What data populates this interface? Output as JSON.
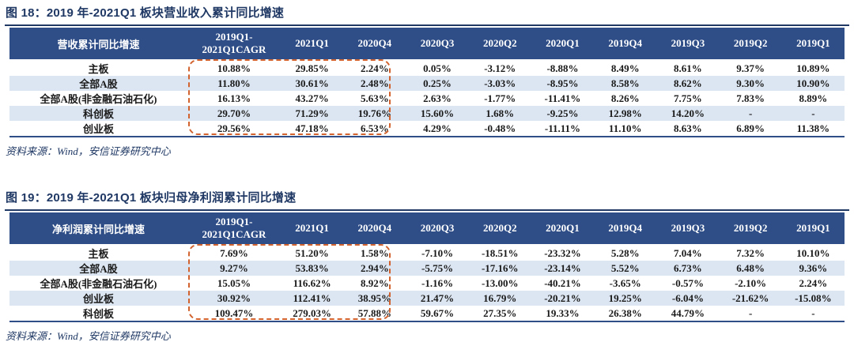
{
  "colors": {
    "header_bg": "#2F4E87",
    "row_alt_bg": "#DCE6F2",
    "navy_text": "#1F3864",
    "highlight_dashed_border": "#D2632F",
    "table_bottom_border": "#2F4E87"
  },
  "figures": [
    {
      "title": "图 18：2019 年-2021Q1 板块营业收入累计同比增速",
      "source": "资料来源：Wind，安信证券研究中心",
      "table": {
        "header_label": "营收累计同比增速",
        "cagr_header_line1": "2019Q1-",
        "cagr_header_line2": "2021Q1CAGR",
        "quarter_columns": [
          "2021Q1",
          "2020Q4",
          "2020Q3",
          "2020Q2",
          "2020Q1",
          "2019Q4",
          "2019Q3",
          "2019Q2",
          "2019Q1"
        ],
        "highlighted_columns": [
          "2019Q1-2021Q1CAGR",
          "2021Q1",
          "2020Q4"
        ],
        "rows": [
          {
            "label": "主板",
            "values": [
              "10.88%",
              "29.85%",
              "2.24%",
              "0.05%",
              "-3.12%",
              "-8.88%",
              "8.49%",
              "8.61%",
              "9.37%",
              "10.89%"
            ]
          },
          {
            "label": "全部A股",
            "values": [
              "11.80%",
              "30.61%",
              "2.48%",
              "0.25%",
              "-3.03%",
              "-8.95%",
              "8.58%",
              "8.62%",
              "9.30%",
              "10.90%"
            ]
          },
          {
            "label": "全部A股(非金融石油石化)",
            "values": [
              "16.13%",
              "43.27%",
              "5.63%",
              "2.63%",
              "-1.77%",
              "-11.41%",
              "8.26%",
              "7.75%",
              "7.83%",
              "8.89%"
            ]
          },
          {
            "label": "科创板",
            "values": [
              "29.70%",
              "71.29%",
              "19.76%",
              "15.60%",
              "1.68%",
              "-9.25%",
              "12.98%",
              "14.20%",
              "-",
              "-"
            ]
          },
          {
            "label": "创业板",
            "values": [
              "29.56%",
              "47.18%",
              "6.53%",
              "4.29%",
              "-0.48%",
              "-11.11%",
              "11.10%",
              "8.63%",
              "6.89%",
              "11.38%"
            ]
          }
        ]
      }
    },
    {
      "title": "图 19：2019 年-2021Q1 板块归母净利润累计同比增速",
      "source": "资料来源：Wind，安信证券研究中心",
      "table": {
        "header_label": "净利润累计同比增速",
        "cagr_header_line1": "2019Q1-",
        "cagr_header_line2": "2021Q1CAGR",
        "quarter_columns": [
          "2021Q1",
          "2020Q4",
          "2020Q3",
          "2020Q2",
          "2020Q1",
          "2019Q4",
          "2019Q3",
          "2019Q2",
          "2019Q1"
        ],
        "highlighted_columns": [
          "2019Q1-2021Q1CAGR",
          "2021Q1",
          "2020Q4"
        ],
        "rows": [
          {
            "label": "主板",
            "values": [
              "7.69%",
              "51.20%",
              "1.58%",
              "-7.10%",
              "-18.51%",
              "-23.32%",
              "5.28%",
              "7.04%",
              "7.32%",
              "10.10%"
            ]
          },
          {
            "label": "全部A股",
            "values": [
              "9.27%",
              "53.83%",
              "2.94%",
              "-5.75%",
              "-17.16%",
              "-23.14%",
              "5.52%",
              "6.73%",
              "6.48%",
              "9.36%"
            ]
          },
          {
            "label": "全部A股(非金融石油石化)",
            "values": [
              "15.05%",
              "116.62%",
              "8.92%",
              "-1.16%",
              "-13.00%",
              "-40.21%",
              "-3.65%",
              "-0.57%",
              "-2.10%",
              "2.24%"
            ]
          },
          {
            "label": "创业板",
            "values": [
              "30.92%",
              "112.41%",
              "38.95%",
              "21.47%",
              "16.79%",
              "-20.21%",
              "19.25%",
              "-6.04%",
              "-21.62%",
              "-15.08%"
            ]
          },
          {
            "label": "科创板",
            "values": [
              "109.47%",
              "279.03%",
              "57.88%",
              "59.67%",
              "27.35%",
              "19.33%",
              "26.38%",
              "44.79%",
              "-",
              "-"
            ]
          }
        ]
      }
    }
  ]
}
